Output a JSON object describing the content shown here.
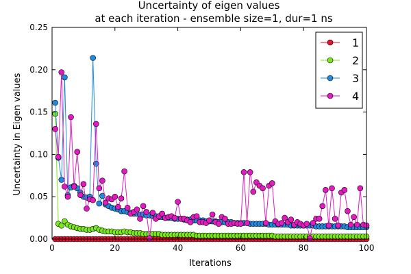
{
  "chart_data": {
    "type": "line",
    "title": "Uncertainty of eigen values",
    "subtitle": "at each iteration - ensemble size=1, dur=1 ns",
    "xlabel": "Iterations",
    "ylabel": "Uncertainty in Eigen values",
    "xlim": [
      0,
      100
    ],
    "ylim": [
      0,
      0.25
    ],
    "xticks": [
      0,
      20,
      40,
      60,
      80,
      100
    ],
    "yticks": [
      0.0,
      0.05,
      0.1,
      0.15,
      0.2,
      0.25
    ],
    "xtick_labels": [
      "0",
      "20",
      "40",
      "60",
      "80",
      "100"
    ],
    "ytick_labels": [
      "0.00",
      "0.05",
      "0.10",
      "0.15",
      "0.20",
      "0.25"
    ],
    "grid": false,
    "legend_position": "top-right",
    "series": [
      {
        "name": "1",
        "color": "#e8102e",
        "x": [
          1,
          2,
          3,
          4,
          5,
          6,
          7,
          8,
          9,
          10,
          11,
          12,
          13,
          14,
          15,
          16,
          17,
          18,
          19,
          20,
          21,
          22,
          23,
          24,
          25,
          26,
          27,
          28,
          29,
          30,
          31,
          32,
          33,
          34,
          35,
          36,
          37,
          38,
          39,
          40,
          41,
          42,
          43,
          44,
          45,
          46,
          47,
          48,
          49,
          50,
          51,
          52,
          53,
          54,
          55,
          56,
          57,
          58,
          59,
          60,
          61,
          62,
          63,
          64,
          65,
          66,
          67,
          68,
          69,
          70,
          71,
          72,
          73,
          74,
          75,
          76,
          77,
          78,
          79,
          80,
          81,
          82,
          83,
          84,
          85,
          86,
          87,
          88,
          89,
          90,
          91,
          92,
          93,
          94,
          95,
          96,
          97,
          98,
          99,
          100
        ],
        "y": [
          0.0,
          0.0,
          0.0,
          0.0,
          0.0,
          0.0,
          0.0,
          0.0,
          0.0,
          0.0,
          0.0,
          0.0,
          0.0,
          0.0,
          0.0,
          0.0,
          0.0,
          0.0,
          0.0,
          0.0,
          0.0,
          0.0,
          0.0,
          0.0,
          0.0,
          0.0,
          0.0,
          0.0,
          0.0,
          0.0,
          0.0,
          0.0,
          0.0,
          0.0,
          0.0,
          0.0,
          0.0,
          0.0,
          0.0,
          0.0,
          0.0,
          0.0,
          0.0,
          0.0,
          0.0,
          0.0,
          0.0,
          0.0,
          0.0,
          0.0,
          0.0,
          0.0,
          0.0,
          0.0,
          0.0,
          0.0,
          0.0,
          0.0,
          0.0,
          0.0,
          0.0,
          0.0,
          0.0,
          0.0,
          0.0,
          0.0,
          0.0,
          0.0,
          0.0,
          0.0,
          0.0,
          0.0,
          0.0,
          0.0,
          0.0,
          0.0,
          0.0,
          0.0,
          0.0,
          0.0,
          0.0,
          0.0,
          0.0,
          0.0,
          0.0,
          0.0,
          0.0,
          0.0,
          0.0,
          0.0,
          0.0,
          0.0,
          0.0,
          0.0,
          0.0,
          0.0,
          0.0,
          0.0,
          0.0,
          0.0
        ]
      },
      {
        "name": "2",
        "color": "#7be81a",
        "x": [
          1,
          2,
          3,
          4,
          5,
          6,
          7,
          8,
          9,
          10,
          11,
          12,
          13,
          14,
          15,
          16,
          17,
          18,
          19,
          20,
          21,
          22,
          23,
          24,
          25,
          26,
          27,
          28,
          29,
          30,
          31,
          32,
          33,
          34,
          35,
          36,
          37,
          38,
          39,
          40,
          41,
          42,
          43,
          44,
          45,
          46,
          47,
          48,
          49,
          50,
          51,
          52,
          53,
          54,
          55,
          56,
          57,
          58,
          59,
          60,
          61,
          62,
          63,
          64,
          65,
          66,
          67,
          68,
          69,
          70,
          71,
          72,
          73,
          74,
          75,
          76,
          77,
          78,
          79,
          80,
          81,
          82,
          83,
          84,
          85,
          86,
          87,
          88,
          89,
          90,
          91,
          92,
          93,
          94,
          95,
          96,
          97,
          98,
          99,
          100
        ],
        "y": [
          0.148,
          0.018,
          0.016,
          0.021,
          0.017,
          0.015,
          0.014,
          0.013,
          0.012,
          0.012,
          0.011,
          0.011,
          0.012,
          0.013,
          0.011,
          0.01,
          0.009,
          0.009,
          0.009,
          0.008,
          0.008,
          0.008,
          0.009,
          0.008,
          0.008,
          0.007,
          0.007,
          0.007,
          0.006,
          0.006,
          0.006,
          0.006,
          0.006,
          0.006,
          0.005,
          0.005,
          0.005,
          0.005,
          0.005,
          0.005,
          0.005,
          0.005,
          0.005,
          0.005,
          0.005,
          0.004,
          0.004,
          0.004,
          0.004,
          0.004,
          0.004,
          0.004,
          0.004,
          0.004,
          0.004,
          0.004,
          0.004,
          0.004,
          0.004,
          0.004,
          0.004,
          0.004,
          0.004,
          0.004,
          0.004,
          0.004,
          0.004,
          0.004,
          0.004,
          0.004,
          0.003,
          0.003,
          0.003,
          0.003,
          0.003,
          0.003,
          0.003,
          0.003,
          0.003,
          0.003,
          0.003,
          0.003,
          0.003,
          0.003,
          0.003,
          0.003,
          0.003,
          0.003,
          0.003,
          0.003,
          0.003,
          0.003,
          0.003,
          0.003,
          0.003,
          0.003,
          0.003,
          0.003,
          0.003,
          0.003
        ]
      },
      {
        "name": "3",
        "color": "#1f8ae0",
        "x": [
          1,
          2,
          3,
          4,
          5,
          6,
          7,
          8,
          9,
          10,
          11,
          12,
          13,
          14,
          15,
          16,
          17,
          18,
          19,
          20,
          21,
          22,
          23,
          24,
          25,
          26,
          27,
          28,
          29,
          30,
          31,
          32,
          33,
          34,
          35,
          36,
          37,
          38,
          39,
          40,
          41,
          42,
          43,
          44,
          45,
          46,
          47,
          48,
          49,
          50,
          51,
          52,
          53,
          54,
          55,
          56,
          57,
          58,
          59,
          60,
          61,
          62,
          63,
          64,
          65,
          66,
          67,
          68,
          69,
          70,
          71,
          72,
          73,
          74,
          75,
          76,
          77,
          78,
          79,
          80,
          81,
          82,
          83,
          84,
          85,
          86,
          87,
          88,
          89,
          90,
          91,
          92,
          93,
          94,
          95,
          96,
          97,
          98,
          99,
          100
        ],
        "y": [
          0.161,
          0.096,
          0.07,
          0.191,
          0.052,
          0.061,
          0.063,
          0.06,
          0.055,
          0.05,
          0.049,
          0.05,
          0.214,
          0.089,
          0.042,
          0.051,
          0.041,
          0.039,
          0.037,
          0.036,
          0.035,
          0.033,
          0.033,
          0.032,
          0.031,
          0.03,
          0.03,
          0.029,
          0.029,
          0.028,
          0.028,
          0.027,
          0.027,
          0.026,
          0.026,
          0.025,
          0.025,
          0.025,
          0.024,
          0.024,
          0.024,
          0.023,
          0.023,
          0.023,
          0.022,
          0.022,
          0.022,
          0.022,
          0.021,
          0.021,
          0.021,
          0.021,
          0.02,
          0.02,
          0.02,
          0.02,
          0.02,
          0.019,
          0.019,
          0.019,
          0.019,
          0.019,
          0.018,
          0.018,
          0.018,
          0.018,
          0.018,
          0.018,
          0.017,
          0.017,
          0.017,
          0.017,
          0.017,
          0.017,
          0.017,
          0.016,
          0.016,
          0.016,
          0.016,
          0.016,
          0.016,
          0.016,
          0.016,
          0.015,
          0.015,
          0.015,
          0.015,
          0.015,
          0.015,
          0.015,
          0.015,
          0.015,
          0.015,
          0.014,
          0.014,
          0.014,
          0.014,
          0.014,
          0.014,
          0.014
        ]
      },
      {
        "name": "4",
        "color": "#e21bc0",
        "x": [
          1,
          2,
          3,
          4,
          5,
          6,
          7,
          8,
          9,
          10,
          11,
          12,
          13,
          14,
          15,
          16,
          17,
          18,
          19,
          20,
          21,
          22,
          23,
          24,
          25,
          26,
          27,
          28,
          29,
          30,
          31,
          32,
          33,
          34,
          35,
          36,
          37,
          38,
          39,
          40,
          41,
          42,
          43,
          44,
          45,
          46,
          47,
          48,
          49,
          50,
          51,
          52,
          53,
          54,
          55,
          56,
          57,
          58,
          59,
          60,
          61,
          62,
          63,
          64,
          65,
          66,
          67,
          68,
          69,
          70,
          71,
          72,
          73,
          74,
          75,
          76,
          77,
          78,
          79,
          80,
          81,
          82,
          83,
          84,
          85,
          86,
          87,
          88,
          89,
          90,
          91,
          92,
          93,
          94,
          95,
          96,
          97,
          98,
          99,
          100
        ],
        "y": [
          0.13,
          0.097,
          0.197,
          0.062,
          0.05,
          0.144,
          0.062,
          0.103,
          0.052,
          0.065,
          0.036,
          0.047,
          0.046,
          0.136,
          0.06,
          0.069,
          0.043,
          0.048,
          0.047,
          0.05,
          0.038,
          0.048,
          0.08,
          0.037,
          0.03,
          0.032,
          0.035,
          0.024,
          0.039,
          0.032,
          0.001,
          0.031,
          0.024,
          0.027,
          0.03,
          0.025,
          0.026,
          0.027,
          0.025,
          0.044,
          0.024,
          0.024,
          0.022,
          0.02,
          0.026,
          0.027,
          0.02,
          0.02,
          0.019,
          0.022,
          0.029,
          0.02,
          0.018,
          0.026,
          0.024,
          0.018,
          0.018,
          0.019,
          0.018,
          0.018,
          0.079,
          0.019,
          0.079,
          0.056,
          0.067,
          0.063,
          0.06,
          0.019,
          0.063,
          0.066,
          0.021,
          0.018,
          0.019,
          0.025,
          0.02,
          0.023,
          0.017,
          0.02,
          0.018,
          0.016,
          0.018,
          0.001,
          0.019,
          0.024,
          0.024,
          0.039,
          0.058,
          0.016,
          0.06,
          0.024,
          0.016,
          0.055,
          0.058,
          0.033,
          0.017,
          0.026,
          0.017,
          0.06,
          0.017,
          0.016
        ]
      }
    ]
  }
}
